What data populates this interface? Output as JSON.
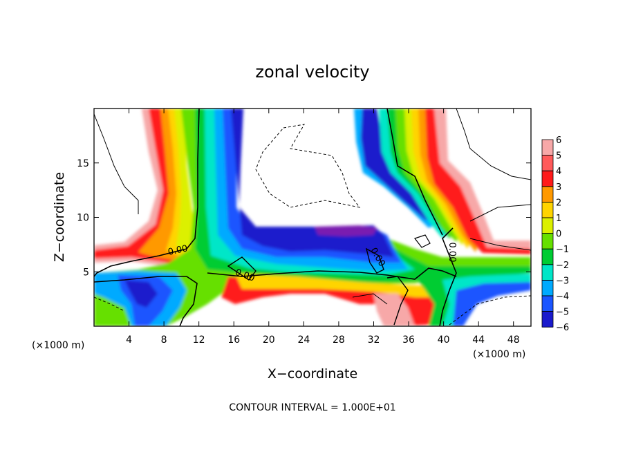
{
  "chart_data": {
    "type": "heatmap",
    "title": "zonal velocity",
    "xlabel": "X−coordinate",
    "ylabel": "Z−coordinate",
    "x_unit_left": "(×1000 m)",
    "x_unit_right": "(×1000 m)",
    "footer": "CONTOUR INTERVAL = 1.000E+01",
    "xlim": [
      0,
      50
    ],
    "ylim": [
      0,
      20
    ],
    "x_ticks": [
      4,
      8,
      12,
      16,
      20,
      24,
      28,
      32,
      36,
      40,
      44,
      48
    ],
    "y_ticks": [
      5,
      10,
      15
    ],
    "contour_labels": [
      "0.00",
      "0.00",
      "0.00",
      "0.00"
    ],
    "colorbar": {
      "levels": [
        6,
        5,
        4,
        3,
        2,
        1,
        0,
        -1,
        -2,
        -3,
        -4,
        -5,
        -6
      ],
      "labels": [
        "6",
        "5",
        "4",
        "3",
        "2",
        "1",
        "0",
        "−1",
        "−2",
        "−3",
        "−4",
        "−5",
        "−6"
      ],
      "colors": [
        "#f7a8a8",
        "#ff5a5a",
        "#ff1a1a",
        "#ff9900",
        "#ffd400",
        "#dcf000",
        "#66e000",
        "#00cc33",
        "#00e6c8",
        "#00aaff",
        "#1a55ff",
        "#1a1acc",
        "#7a1ab0"
      ]
    },
    "band_colors": {
      "pos6": "#f7a8a8",
      "pos5": "#ff5a5a",
      "pos4": "#ff1a1a",
      "pos3": "#ff9900",
      "pos2": "#ffd400",
      "pos1": "#dcf000",
      "zero": "#66e000",
      "neg1": "#00cc33",
      "neg2": "#00e6c8",
      "neg3": "#00aaff",
      "neg4": "#1a55ff",
      "neg5": "#1a1acc",
      "neg6": "#7a1ab0"
    }
  }
}
